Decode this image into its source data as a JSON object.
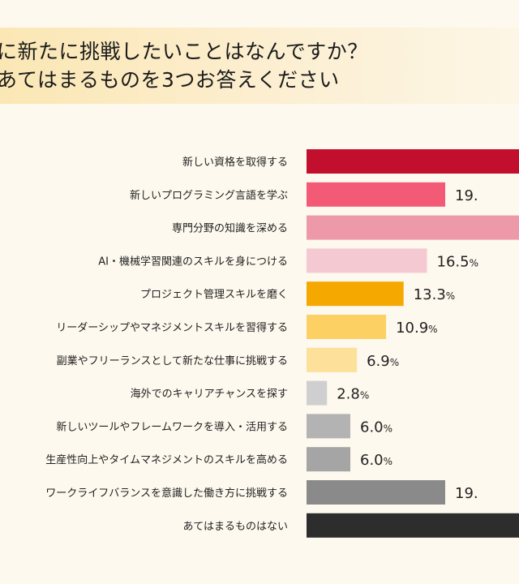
{
  "title_lines": [
    "に新たに挑戦したいことはなんですか？",
    "あてはまるものを3つお答えください"
  ],
  "chart_data": {
    "type": "bar",
    "orientation": "horizontal",
    "categories": [
      "新しい資格を取得する",
      "新しいプログラミング言語を学ぶ",
      "専門分野の知識を深める",
      "AI・機械学習関連のスキルを身につける",
      "プロジェクト管理スキルを磨く",
      "リーダーシップやマネジメントスキルを習得する",
      "副業やフリーランスとして新たな仕事に挑戦する",
      "海外でのキャリアチャンスを探す",
      "新しいツールやフレームワークを導入・活用する",
      "生産性向上やタイムマネジメントのスキルを高める",
      "ワークライフバランスを意識した働き方に挑戦する",
      "あてはまるものはない"
    ],
    "values": [
      null,
      19,
      null,
      16.5,
      13.3,
      10.9,
      6.9,
      2.8,
      6.0,
      6.0,
      19,
      null
    ],
    "value_labels": [
      "",
      "19.",
      "",
      "16.5",
      "13.3",
      "10.9",
      "6.9",
      "2.8",
      "6.0",
      "6.0",
      "19.",
      ""
    ],
    "unit": "%",
    "colors": [
      "#c20f2e",
      "#f25a76",
      "#ee99aa",
      "#f4c9d2",
      "#f5a800",
      "#fcd062",
      "#fde09a",
      "#cfcfcf",
      "#b3b3b3",
      "#a5a5a5",
      "#8a8a8a",
      "#2d2d2d"
    ]
  }
}
